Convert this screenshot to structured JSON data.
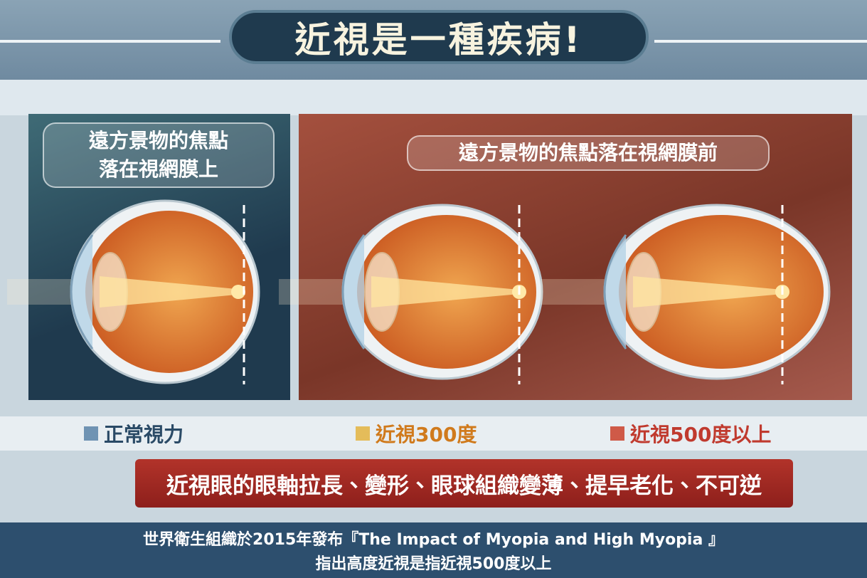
{
  "header": {
    "title": "近視是一種疾病!"
  },
  "panels": [
    {
      "label_lines": [
        "遠方景物的焦點",
        "落在視網膜上"
      ]
    },
    {
      "label": "遠方景物的焦點落在視網膜前"
    }
  ],
  "legend": [
    {
      "label": "正常視力"
    },
    {
      "label": "近視300度"
    },
    {
      "label": "近視500度以上"
    }
  ],
  "banner": "近視眼的眼軸拉長、變形、眼球組織變薄、提早老化、不可逆",
  "footer": {
    "lines": [
      "世界衛生組織於2015年發布『The Impact of Myopia and High Myopia 』",
      "指出高度近視是指近視500度以上"
    ]
  }
}
